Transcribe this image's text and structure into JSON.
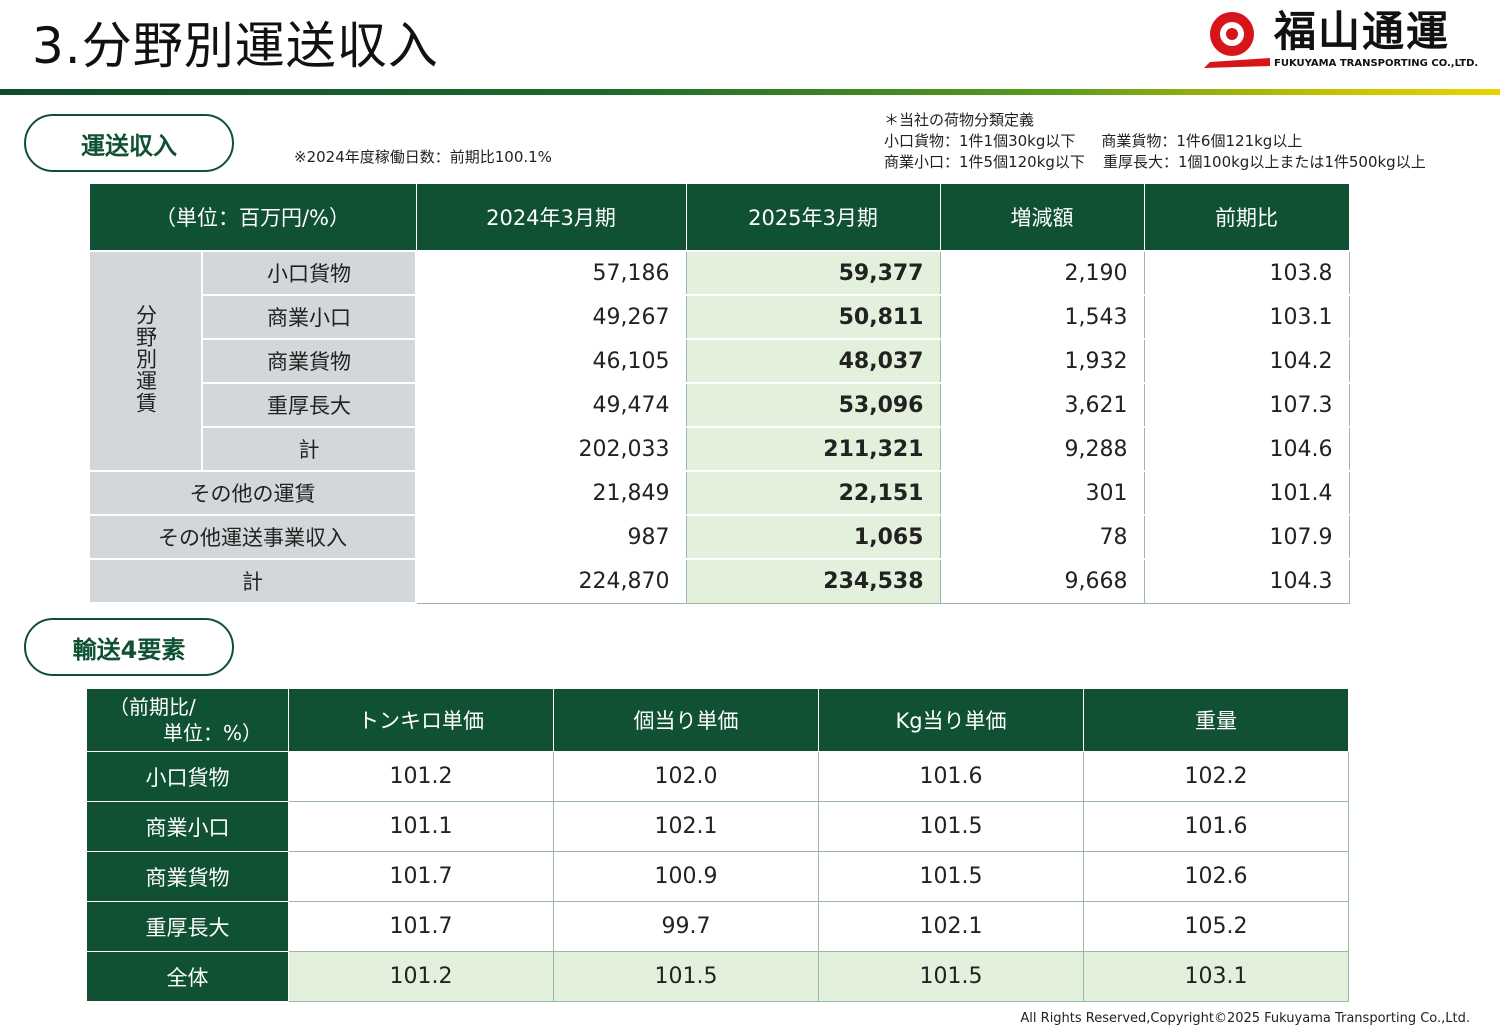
{
  "header": {
    "title": "3.分野別運送収入",
    "logo_text": "福山通運",
    "logo_sub": "FUKUYAMA TRANSPORTING CO.,LTD.",
    "brand_color": "#0f5132"
  },
  "section1": {
    "pill": "運送収入",
    "note": "※2024年度稼働日数：前期比100.1%",
    "definitions": {
      "heading": "＊当社の荷物分類定義",
      "row1_left": "小口貨物：1件1個30kg以下",
      "row1_right": "商業貨物：1件6個121kg以上",
      "row2_left": "商業小口：1件5個120kg以下",
      "row2_right": "重厚長大：1個100kg以上または1件500kg以上"
    },
    "table": {
      "headers": [
        "（単位：百万円/%）",
        "2024年3月期",
        "2025年3月期",
        "増減額",
        "前期比"
      ],
      "group_label": "分野別運賃",
      "rows": [
        {
          "label": "小口貨物",
          "v2024": "57,186",
          "v2025": "59,377",
          "diff": "2,190",
          "ratio": "103.8"
        },
        {
          "label": "商業小口",
          "v2024": "49,267",
          "v2025": "50,811",
          "diff": "1,543",
          "ratio": "103.1"
        },
        {
          "label": "商業貨物",
          "v2024": "46,105",
          "v2025": "48,037",
          "diff": "1,932",
          "ratio": "104.2"
        },
        {
          "label": "重厚長大",
          "v2024": "49,474",
          "v2025": "53,096",
          "diff": "3,621",
          "ratio": "107.3"
        },
        {
          "label": "計",
          "v2024": "202,033",
          "v2025": "211,321",
          "diff": "9,288",
          "ratio": "104.6"
        },
        {
          "label": "その他の運賃",
          "v2024": "21,849",
          "v2025": "22,151",
          "diff": "301",
          "ratio": "101.4"
        },
        {
          "label": "その他運送事業収入",
          "v2024": "987",
          "v2025": "1,065",
          "diff": "78",
          "ratio": "107.9"
        },
        {
          "label": "計",
          "v2024": "224,870",
          "v2025": "234,538",
          "diff": "9,668",
          "ratio": "104.3"
        }
      ]
    }
  },
  "section2": {
    "pill": "輸送4要素",
    "table": {
      "corner_line1": "（前期比/",
      "corner_line2": "単位：%）",
      "headers": [
        "トンキロ単価",
        "個当り単価",
        "Kg当り単価",
        "重量"
      ],
      "rows": [
        {
          "label": "小口貨物",
          "values": [
            "101.2",
            "102.0",
            "101.6",
            "102.2"
          ]
        },
        {
          "label": "商業小口",
          "values": [
            "101.1",
            "102.1",
            "101.5",
            "101.6"
          ]
        },
        {
          "label": "商業貨物",
          "values": [
            "101.7",
            "100.9",
            "101.5",
            "102.6"
          ]
        },
        {
          "label": "重厚長大",
          "values": [
            "101.7",
            "99.7",
            "102.1",
            "105.2"
          ]
        },
        {
          "label": "全体",
          "values": [
            "101.2",
            "101.5",
            "101.5",
            "103.1"
          ]
        }
      ]
    }
  },
  "footer": {
    "copyright": "All Rights Reserved,Copyright©2025 Fukuyama Transporting Co.,Ltd."
  }
}
